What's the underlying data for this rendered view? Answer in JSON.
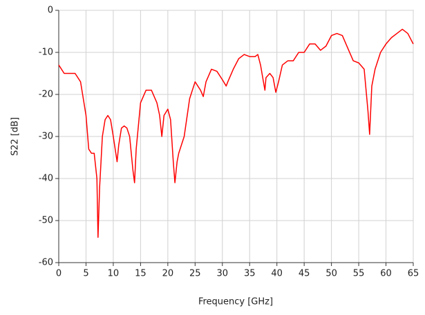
{
  "chart_data": {
    "type": "line",
    "xlabel": "Frequency [GHz]",
    "ylabel": "S22 [dB]",
    "x": [
      0,
      1,
      2,
      3,
      4,
      5,
      5.5,
      6,
      6.5,
      7,
      7.2,
      7.5,
      8,
      8.5,
      9,
      9.5,
      10,
      10.7,
      11,
      11.5,
      12,
      12.5,
      13,
      13.6,
      13.9,
      14.2,
      15,
      16,
      17,
      18,
      18.5,
      18.9,
      19.3,
      20,
      20.5,
      21,
      21.3,
      21.7,
      22,
      23,
      24,
      25,
      26,
      26.5,
      27,
      28,
      29,
      30,
      30.7,
      31,
      32,
      33,
      34,
      35,
      36,
      36.5,
      37,
      37.8,
      38,
      38.7,
      39.3,
      39.8,
      40.3,
      41,
      42,
      43,
      44,
      45,
      46,
      47,
      48,
      49,
      50,
      51,
      52,
      53,
      54,
      55,
      56,
      56.7,
      57,
      57.4,
      58,
      59,
      60,
      61,
      62,
      63,
      64,
      65
    ],
    "series": [
      {
        "name": "S22",
        "color": "#ff0000",
        "values": [
          -13,
          -15,
          -15,
          -15,
          -17,
          -25,
          -33,
          -34,
          -34,
          -40,
          -54,
          -42,
          -30,
          -26,
          -25,
          -26,
          -30,
          -36,
          -32,
          -28,
          -27.5,
          -28,
          -30,
          -38,
          -41,
          -33,
          -22,
          -19,
          -19,
          -22,
          -25,
          -30,
          -25,
          -23.5,
          -26,
          -36,
          -41,
          -36,
          -34,
          -30,
          -21,
          -17,
          -19,
          -20.5,
          -17,
          -14,
          -14.5,
          -16.5,
          -18,
          -17,
          -14,
          -11.5,
          -10.5,
          -11,
          -11,
          -10.5,
          -13,
          -19,
          -16,
          -15,
          -16,
          -19.5,
          -17,
          -13,
          -12,
          -12,
          -10,
          -10,
          -8,
          -8,
          -9.5,
          -8.5,
          -6,
          -5.5,
          -6,
          -9,
          -12,
          -12.5,
          -14,
          -24,
          -29.5,
          -18,
          -14,
          -10,
          -8,
          -6.5,
          -5.5,
          -4.5,
          -5.5,
          -8
        ]
      }
    ],
    "xlim": [
      0,
      65
    ],
    "xticks": [
      0,
      5,
      10,
      15,
      20,
      25,
      30,
      35,
      40,
      45,
      50,
      55,
      60,
      65
    ],
    "ylim": [
      -60,
      0
    ],
    "yticks": [
      0,
      -10,
      -20,
      -30,
      -40,
      -50,
      -60
    ],
    "grid": true
  }
}
